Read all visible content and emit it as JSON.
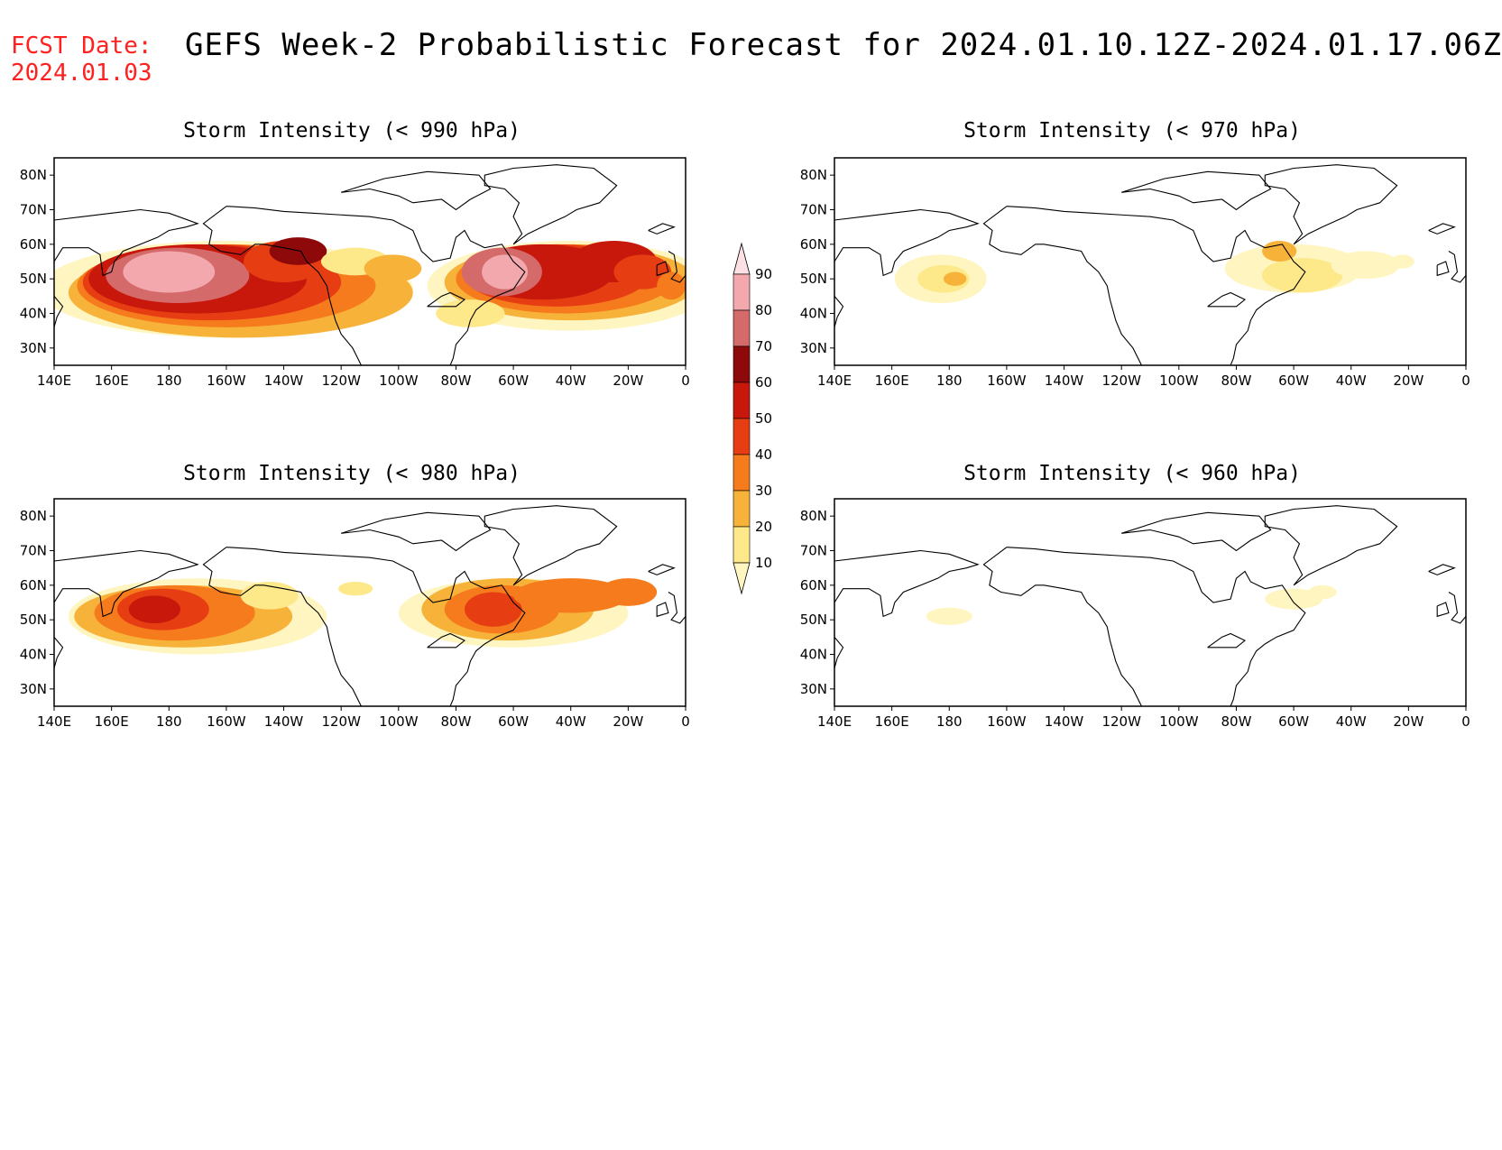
{
  "header": {
    "fcst_label": "FCST Date:",
    "fcst_date": "2024.01.03",
    "title": "GEFS Week-2 Probabilistic Forecast for 2024.01.10.12Z-2024.01.17.06Z"
  },
  "axes": {
    "lat_labels": [
      "80N",
      "70N",
      "60N",
      "50N",
      "40N",
      "30N"
    ],
    "lat_values": [
      80,
      70,
      60,
      50,
      40,
      30
    ],
    "lon_labels": [
      "140E",
      "160E",
      "180",
      "160W",
      "140W",
      "120W",
      "100W",
      "80W",
      "60W",
      "40W",
      "20W",
      "0"
    ],
    "lon_range": [
      140,
      360
    ],
    "lat_range": [
      25,
      85
    ]
  },
  "colorbar": {
    "levels": [
      10,
      20,
      30,
      40,
      50,
      60,
      70,
      80,
      90
    ],
    "labels": [
      "10",
      "20",
      "30",
      "40",
      "50",
      "60",
      "70",
      "80",
      "90"
    ],
    "colors": [
      "#fff5c0",
      "#fde88a",
      "#f7b23a",
      "#f57b1d",
      "#e63e12",
      "#c8180b",
      "#8e0a0a",
      "#d46a6a",
      "#f2a8ad",
      "#fde0e3"
    ]
  },
  "panels": [
    {
      "id": "p990",
      "title": "Storm Intensity (< 990 hPa)"
    },
    {
      "id": "p980",
      "title": "Storm Intensity (< 980 hPa)"
    },
    {
      "id": "p970",
      "title": "Storm Intensity (< 970 hPa)"
    },
    {
      "id": "p960",
      "title": "Storm Intensity (< 960 hPa)"
    }
  ]
}
